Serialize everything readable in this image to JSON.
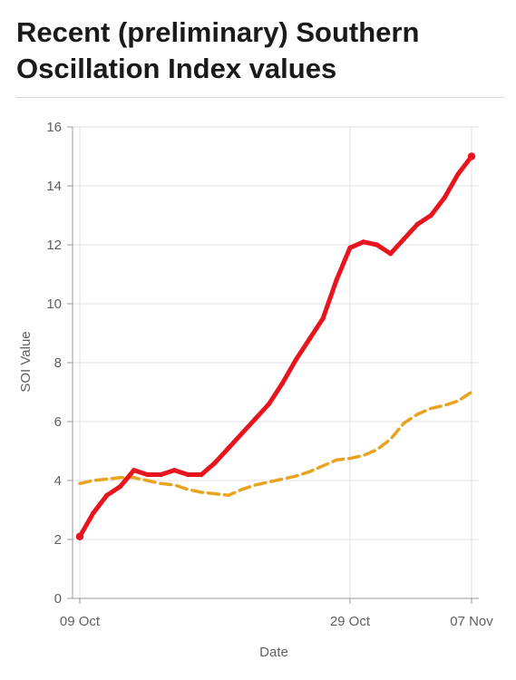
{
  "page": {
    "title": "Recent (preliminary) Southern Oscillation Index values"
  },
  "colors": {
    "series_daily": "#e8141e",
    "series_trend": "#eaa31f",
    "grid": "#e2e2e2",
    "axis": "#9a9a9a",
    "text": "#5f5f5f"
  },
  "chart_data": {
    "type": "line",
    "title": "Recent (preliminary) Southern Oscillation Index values",
    "xlabel": "Date",
    "ylabel": "SOI Value",
    "xlim": [
      "2025-10-09",
      "2025-11-07"
    ],
    "ylim": [
      0,
      16
    ],
    "yticks": [
      0,
      2,
      4,
      6,
      8,
      10,
      12,
      14,
      16
    ],
    "xticks": [
      {
        "date": "2025-10-09",
        "label": "09 Oct"
      },
      {
        "date": "2025-10-29",
        "label": "29 Oct"
      },
      {
        "date": "2025-11-07",
        "label": "07 Nov"
      }
    ],
    "grid": true,
    "legend": "none",
    "x": [
      "2025-10-09",
      "2025-10-10",
      "2025-10-11",
      "2025-10-12",
      "2025-10-13",
      "2025-10-14",
      "2025-10-15",
      "2025-10-16",
      "2025-10-17",
      "2025-10-18",
      "2025-10-19",
      "2025-10-20",
      "2025-10-21",
      "2025-10-22",
      "2025-10-23",
      "2025-10-24",
      "2025-10-25",
      "2025-10-26",
      "2025-10-27",
      "2025-10-28",
      "2025-10-29",
      "2025-10-30",
      "2025-10-31",
      "2025-11-01",
      "2025-11-02",
      "2025-11-03",
      "2025-11-04",
      "2025-11-05",
      "2025-11-06",
      "2025-11-07"
    ],
    "series": [
      {
        "style": "solid",
        "values": [
          2.1,
          2.9,
          3.5,
          3.8,
          4.35,
          4.2,
          4.2,
          4.35,
          4.2,
          4.2,
          4.6,
          5.1,
          5.6,
          6.1,
          6.6,
          7.3,
          8.1,
          8.8,
          9.5,
          10.8,
          11.9,
          12.1,
          12.0,
          11.7,
          12.2,
          12.7,
          13.0,
          13.6,
          14.4,
          15.0
        ]
      },
      {
        "style": "dashed",
        "values": [
          3.9,
          4.0,
          4.05,
          4.1,
          4.1,
          4.0,
          3.9,
          3.85,
          3.7,
          3.6,
          3.55,
          3.5,
          3.7,
          3.85,
          3.95,
          4.05,
          4.15,
          4.3,
          4.5,
          4.7,
          4.75,
          4.85,
          5.05,
          5.4,
          5.95,
          6.25,
          6.45,
          6.55,
          6.7,
          7.0
        ]
      }
    ]
  }
}
